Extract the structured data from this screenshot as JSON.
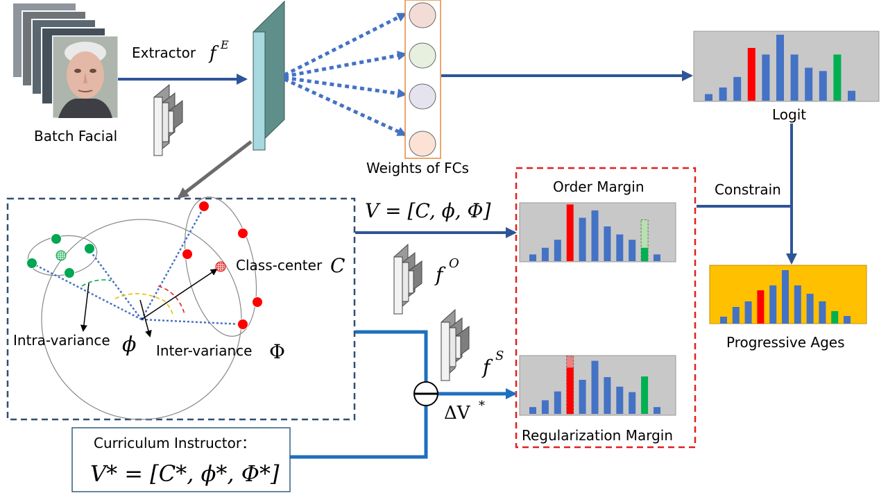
{
  "labels": {
    "batch_facial": "Batch Facial",
    "extractor": "Extractor",
    "weights_of_fcs": "Weights of FCs",
    "logit": "Logit",
    "constrain": "Constrain",
    "order_margin": "Order Margin",
    "progressive_ages": "Progressive Ages",
    "regularization_margin": "Regularization Margin",
    "class_center": "Class-center",
    "intra_variance": "Intra-variance",
    "inter_variance": "Inter-variance",
    "curriculum_instructor": "Curriculum Instructor："
  },
  "math": {
    "f_e": "f",
    "f_e_sup": "E",
    "v_eq": "V = [C, ϕ, Φ]",
    "f_o": "f",
    "f_o_sup": "O",
    "f_s": "f",
    "f_s_sup": "S",
    "delta_v": "ΔV",
    "delta_v_sup": "*",
    "c_symbol": "C",
    "phi_small": "ϕ",
    "phi_big": "Φ",
    "v_star": "V* = [C*, ϕ*, Φ*]"
  },
  "colors": {
    "arrow_blue": "#2f5597",
    "arrow_dotted": "#4472c4",
    "line_blue": "#1f6fbf",
    "bar_blue": "#4472c4",
    "bar_red": "#ff0000",
    "bar_green": "#00b050",
    "chart_bg": "#c8c8c8",
    "progressive_bg": "#ffc000",
    "dashed_red": "#e02020",
    "dashed_navy": "#2f4f6f",
    "plate_cyan": "#a8d8e0",
    "node_green": "#00a651",
    "node_red": "#ff0000"
  },
  "chart_data": [
    {
      "type": "bar",
      "name": "logit",
      "values": [
        1,
        2,
        3.6,
        8,
        7,
        10,
        7,
        5,
        4.5,
        7,
        1.5
      ],
      "highlight": {
        "3": "red",
        "9": "green"
      }
    },
    {
      "type": "bar",
      "name": "order-margin",
      "values": [
        1,
        2,
        3.2,
        8.5,
        6.5,
        7.6,
        5.2,
        4,
        3.2,
        2,
        1
      ],
      "highlight": {
        "3": "red",
        "9": "green"
      },
      "ghost": {
        "9": 6.2
      }
    },
    {
      "type": "bar",
      "name": "progressive-ages",
      "values": [
        1,
        2.4,
        3.2,
        4.8,
        5.5,
        7.7,
        5.5,
        4.3,
        3.2,
        1.8,
        1.1
      ],
      "highlight": {
        "3": "red",
        "9": "green"
      }
    },
    {
      "type": "bar",
      "name": "regularization-margin",
      "values": [
        1,
        2,
        3.3,
        6.8,
        5,
        7.8,
        5.4,
        4,
        3.2,
        5.5,
        1
      ],
      "highlight": {
        "3": "red",
        "9": "green"
      },
      "ghost": {
        "3": 8.5
      }
    }
  ]
}
